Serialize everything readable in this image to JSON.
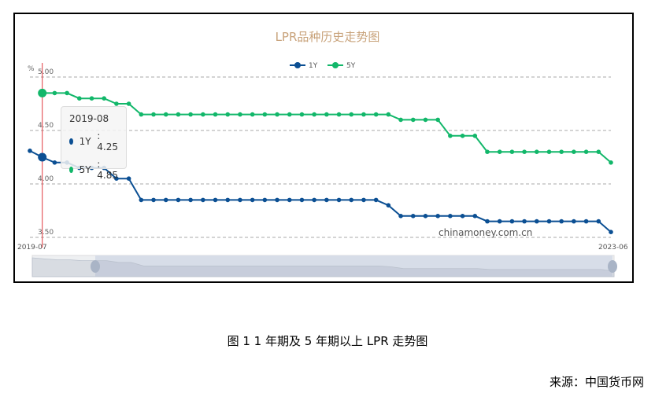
{
  "chart_data": {
    "type": "line",
    "title": "LPR品种历史走势图",
    "ylabel": "%",
    "ylim": [
      3.5,
      5.0
    ],
    "yticks": [
      "5.00",
      "4.50",
      "4.00",
      "3.50"
    ],
    "xtick_labels": [
      "2019-07",
      "2023-06"
    ],
    "grid": true,
    "legend_placement": "top-center",
    "x": [
      "2019-07",
      "2019-08",
      "2019-09",
      "2019-10",
      "2019-11",
      "2019-12",
      "2020-01",
      "2020-02",
      "2020-03",
      "2020-04",
      "2020-05",
      "2020-06",
      "2020-07",
      "2020-08",
      "2020-09",
      "2020-10",
      "2020-11",
      "2020-12",
      "2021-01",
      "2021-02",
      "2021-03",
      "2021-04",
      "2021-05",
      "2021-06",
      "2021-07",
      "2021-08",
      "2021-09",
      "2021-10",
      "2021-11",
      "2021-12",
      "2022-01",
      "2022-02",
      "2022-03",
      "2022-04",
      "2022-05",
      "2022-06",
      "2022-07",
      "2022-08",
      "2022-09",
      "2022-10",
      "2022-11",
      "2022-12",
      "2023-01",
      "2023-02",
      "2023-03",
      "2023-04",
      "2023-05",
      "2023-06"
    ],
    "series": [
      {
        "name": "1Y",
        "color": "#0b4f93",
        "values": [
          4.31,
          4.25,
          4.2,
          4.2,
          4.15,
          4.15,
          4.15,
          4.05,
          4.05,
          3.85,
          3.85,
          3.85,
          3.85,
          3.85,
          3.85,
          3.85,
          3.85,
          3.85,
          3.85,
          3.85,
          3.85,
          3.85,
          3.85,
          3.85,
          3.85,
          3.85,
          3.85,
          3.85,
          3.85,
          3.8,
          3.7,
          3.7,
          3.7,
          3.7,
          3.7,
          3.7,
          3.7,
          3.65,
          3.65,
          3.65,
          3.65,
          3.65,
          3.65,
          3.65,
          3.65,
          3.65,
          3.65,
          3.55
        ]
      },
      {
        "name": "5Y",
        "color": "#12b76a",
        "values": [
          null,
          4.85,
          4.85,
          4.85,
          4.8,
          4.8,
          4.8,
          4.75,
          4.75,
          4.65,
          4.65,
          4.65,
          4.65,
          4.65,
          4.65,
          4.65,
          4.65,
          4.65,
          4.65,
          4.65,
          4.65,
          4.65,
          4.65,
          4.65,
          4.65,
          4.65,
          4.65,
          4.65,
          4.65,
          4.65,
          4.6,
          4.6,
          4.6,
          4.6,
          4.45,
          4.45,
          4.45,
          4.3,
          4.3,
          4.3,
          4.3,
          4.3,
          4.3,
          4.3,
          4.3,
          4.3,
          4.3,
          4.2
        ]
      }
    ],
    "tooltip": {
      "date": "2019-08",
      "rows": [
        {
          "label": "1Y",
          "value": ": 4.25"
        },
        {
          "label": "5Y",
          "value": ": 4.85"
        }
      ]
    },
    "watermark": "chinamoney.com.cn"
  },
  "caption": "图 1 1 年期及 5 年期以上 LPR 走势图",
  "source": "来源：中国货币网"
}
